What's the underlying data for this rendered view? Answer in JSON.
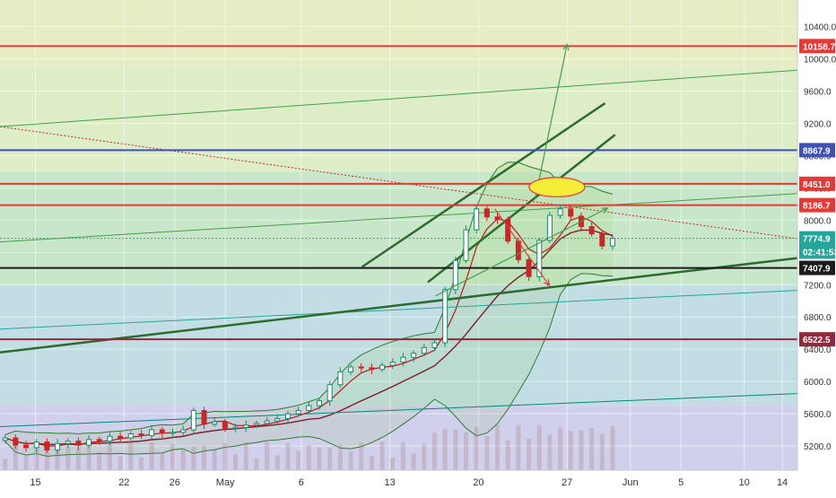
{
  "chart_data": {
    "type": "candlestick",
    "xlabel": "",
    "ylabel": "",
    "ylim": [
      4900,
      10730
    ],
    "x_ticks": [
      {
        "label": "15",
        "day": 15
      },
      {
        "label": "22",
        "day": 22
      },
      {
        "label": "26",
        "day": 26
      },
      {
        "label": "May",
        "day": 30
      },
      {
        "label": "6",
        "day": 36
      },
      {
        "label": "13",
        "day": 43
      },
      {
        "label": "20",
        "day": 50
      },
      {
        "label": "27",
        "day": 57
      },
      {
        "label": "Jun",
        "day": 62
      },
      {
        "label": "5",
        "day": 66
      },
      {
        "label": "10",
        "day": 71
      },
      {
        "label": "14",
        "day": 74
      }
    ],
    "x_range_days": [
      12.2,
      75.2
    ],
    "y_ticks": [
      5200,
      5600,
      6000,
      6400,
      6800,
      7200,
      7600,
      8000,
      8400,
      8800,
      9200,
      9600,
      10000,
      10400
    ],
    "y_tick_labels": [
      "5200.0",
      "5600.0",
      "6000.0",
      "6400.0",
      "6800.0",
      "7200.0",
      "7600.0",
      "8000.0",
      "8400.0",
      "8800.0",
      "9200.0",
      "9600.0",
      "10000.0",
      "10400.0"
    ],
    "price_badges": [
      {
        "label": "10158.7",
        "value": 10158.7,
        "color": "#e53935"
      },
      {
        "label": "8867.9",
        "value": 8867.9,
        "color": "#3f51b5"
      },
      {
        "label": "8451.0",
        "value": 8451.0,
        "color": "#e53935"
      },
      {
        "label": "8186.7",
        "value": 8186.7,
        "color": "#e53935"
      },
      {
        "label": "7774.9",
        "value": 7774.9,
        "color": "#26a69a"
      },
      {
        "label": "02:41:53",
        "value": 7610,
        "color": "#26a69a"
      },
      {
        "label": "7407.9",
        "value": 7407.9,
        "color": "#1b1b1b"
      },
      {
        "label": "6522.5",
        "value": 6522.5,
        "color": "#8e2a3c"
      }
    ],
    "horizontal_levels": [
      {
        "value": 10158.7,
        "color": "#e53935",
        "style": "solid"
      },
      {
        "value": 8867.9,
        "color": "#3f51b5",
        "style": "solid"
      },
      {
        "value": 8451.0,
        "color": "#e53935",
        "style": "solid"
      },
      {
        "value": 8186.7,
        "color": "#e53935",
        "style": "solid"
      },
      {
        "value": 7774.9,
        "color": "#26a69a",
        "style": "dotted"
      },
      {
        "value": 7407.9,
        "color": "#1b1b1b",
        "style": "solid"
      },
      {
        "value": 6522.5,
        "color": "#8e2a3c",
        "style": "solid"
      }
    ],
    "zones": [
      {
        "from": 9900,
        "to": 10730,
        "color": "#e6ecc4"
      },
      {
        "from": 8600,
        "to": 9900,
        "color": "#dcedc8"
      },
      {
        "from": 7200,
        "to": 8600,
        "color": "#c8e6c9"
      },
      {
        "from": 5700,
        "to": 7200,
        "color": "#c2dde3"
      },
      {
        "from": 4900,
        "to": 5700,
        "color": "#d0d0ec"
      }
    ],
    "trend_lines": [
      {
        "from": [
          12.2,
          9160
        ],
        "to": [
          75.2,
          9860
        ],
        "color": "#43a047"
      },
      {
        "from": [
          12.2,
          7730
        ],
        "to": [
          75.2,
          8330
        ],
        "color": "#43a047"
      },
      {
        "from": [
          12.2,
          6650
        ],
        "to": [
          75.2,
          7130
        ],
        "color": "#26a69a"
      },
      {
        "from": [
          12.2,
          5440
        ],
        "to": [
          75.2,
          5850
        ],
        "color": "#00897b"
      },
      {
        "from": [
          12.2,
          6360
        ],
        "to": [
          75.2,
          7530
        ],
        "color": "#2e6b2e",
        "width": 2.5
      },
      {
        "from": [
          40.8,
          7420
        ],
        "to": [
          60.0,
          9450
        ],
        "color": "#2e6b2e",
        "width": 2.5
      },
      {
        "from": [
          46.0,
          7230
        ],
        "to": [
          60.8,
          9060
        ],
        "color": "#2e6b2e",
        "width": 2.5
      }
    ],
    "dotted_lines": [
      {
        "from": [
          12.2,
          9160
        ],
        "to": [
          75.2,
          7770
        ],
        "color": "#c62828"
      }
    ],
    "arrows": [
      {
        "from": [
          54.5,
          8280
        ],
        "to": [
          57.0,
          10180
        ],
        "color": "#43a047"
      },
      {
        "from": [
          46.6,
          7060
        ],
        "to": [
          60.2,
          8150
        ],
        "color": "#43a047"
      },
      {
        "from": [
          51.3,
          8140
        ],
        "to": [
          55.6,
          7190
        ],
        "color": "#e53935"
      }
    ],
    "ellipse": {
      "center": [
        56.2,
        8410
      ],
      "rx_days": 2.2,
      "ry_price": 120,
      "fill": "#f4ee3a",
      "stroke": "#e53935"
    },
    "series": [
      {
        "name": "",
        "values": [
          5300,
          5210,
          5180,
          5250,
          5150,
          5230,
          5260,
          5210,
          5280,
          5260,
          5320,
          5300,
          5350,
          5330,
          5400,
          5360,
          5370,
          5400,
          5640,
          5470,
          5500,
          5420,
          5430,
          5460,
          5480,
          5510,
          5540,
          5600,
          5640,
          5700,
          5760,
          5960,
          6120,
          6180,
          6170,
          6150,
          6200,
          6240,
          6300,
          6350,
          6420,
          6480,
          7140,
          7500,
          7880,
          8140,
          8040,
          8010,
          7740,
          7510,
          7300,
          7750,
          8060,
          8140,
          8050,
          7920,
          7830,
          7680,
          7775
        ]
      }
    ]
  }
}
